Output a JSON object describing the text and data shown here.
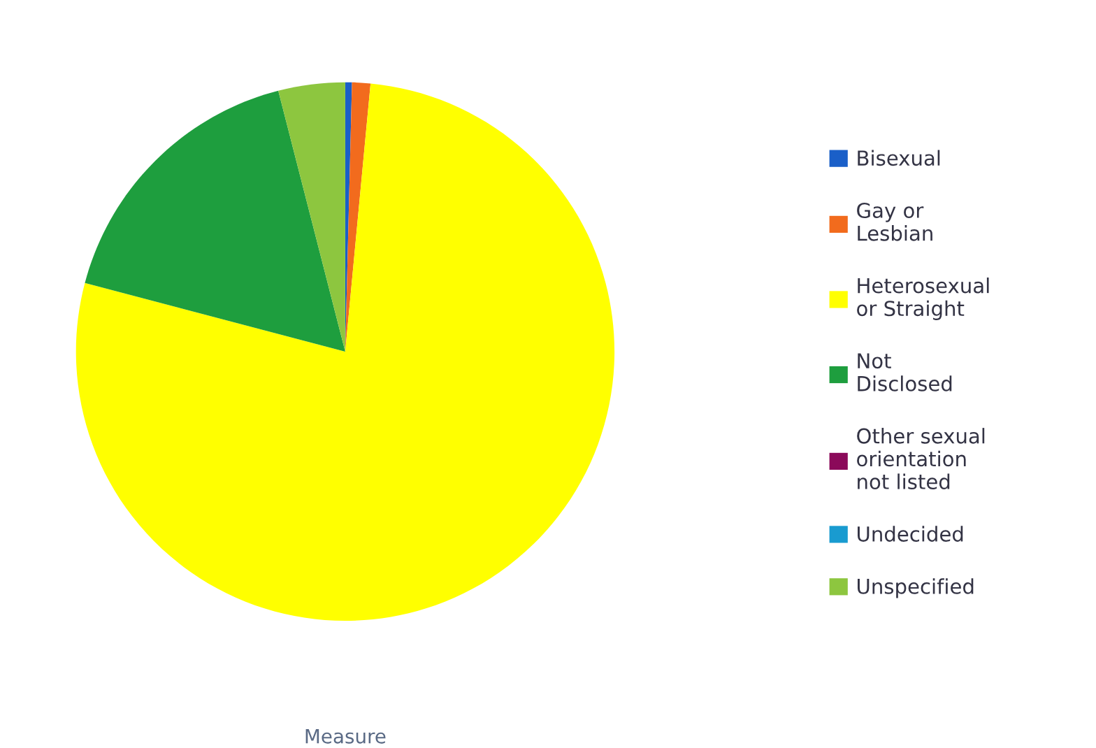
{
  "chart_data": {
    "type": "pie",
    "xlabel": "Measure",
    "categories": [
      "Bisexual",
      "Gay or Lesbian",
      "Heterosexual or Straight",
      "Not Disclosed",
      "Other sexual orientation not listed",
      "Undecided",
      "Unspecified"
    ],
    "values": [
      0.4,
      1.1,
      77.6,
      16.9,
      0,
      0,
      4.0
    ],
    "colors": [
      "#1a5fc8",
      "#f26b1d",
      "#ffff00",
      "#1e9e3e",
      "#8b0a5a",
      "#199bd0",
      "#8dc63f"
    ],
    "legend": "right"
  }
}
